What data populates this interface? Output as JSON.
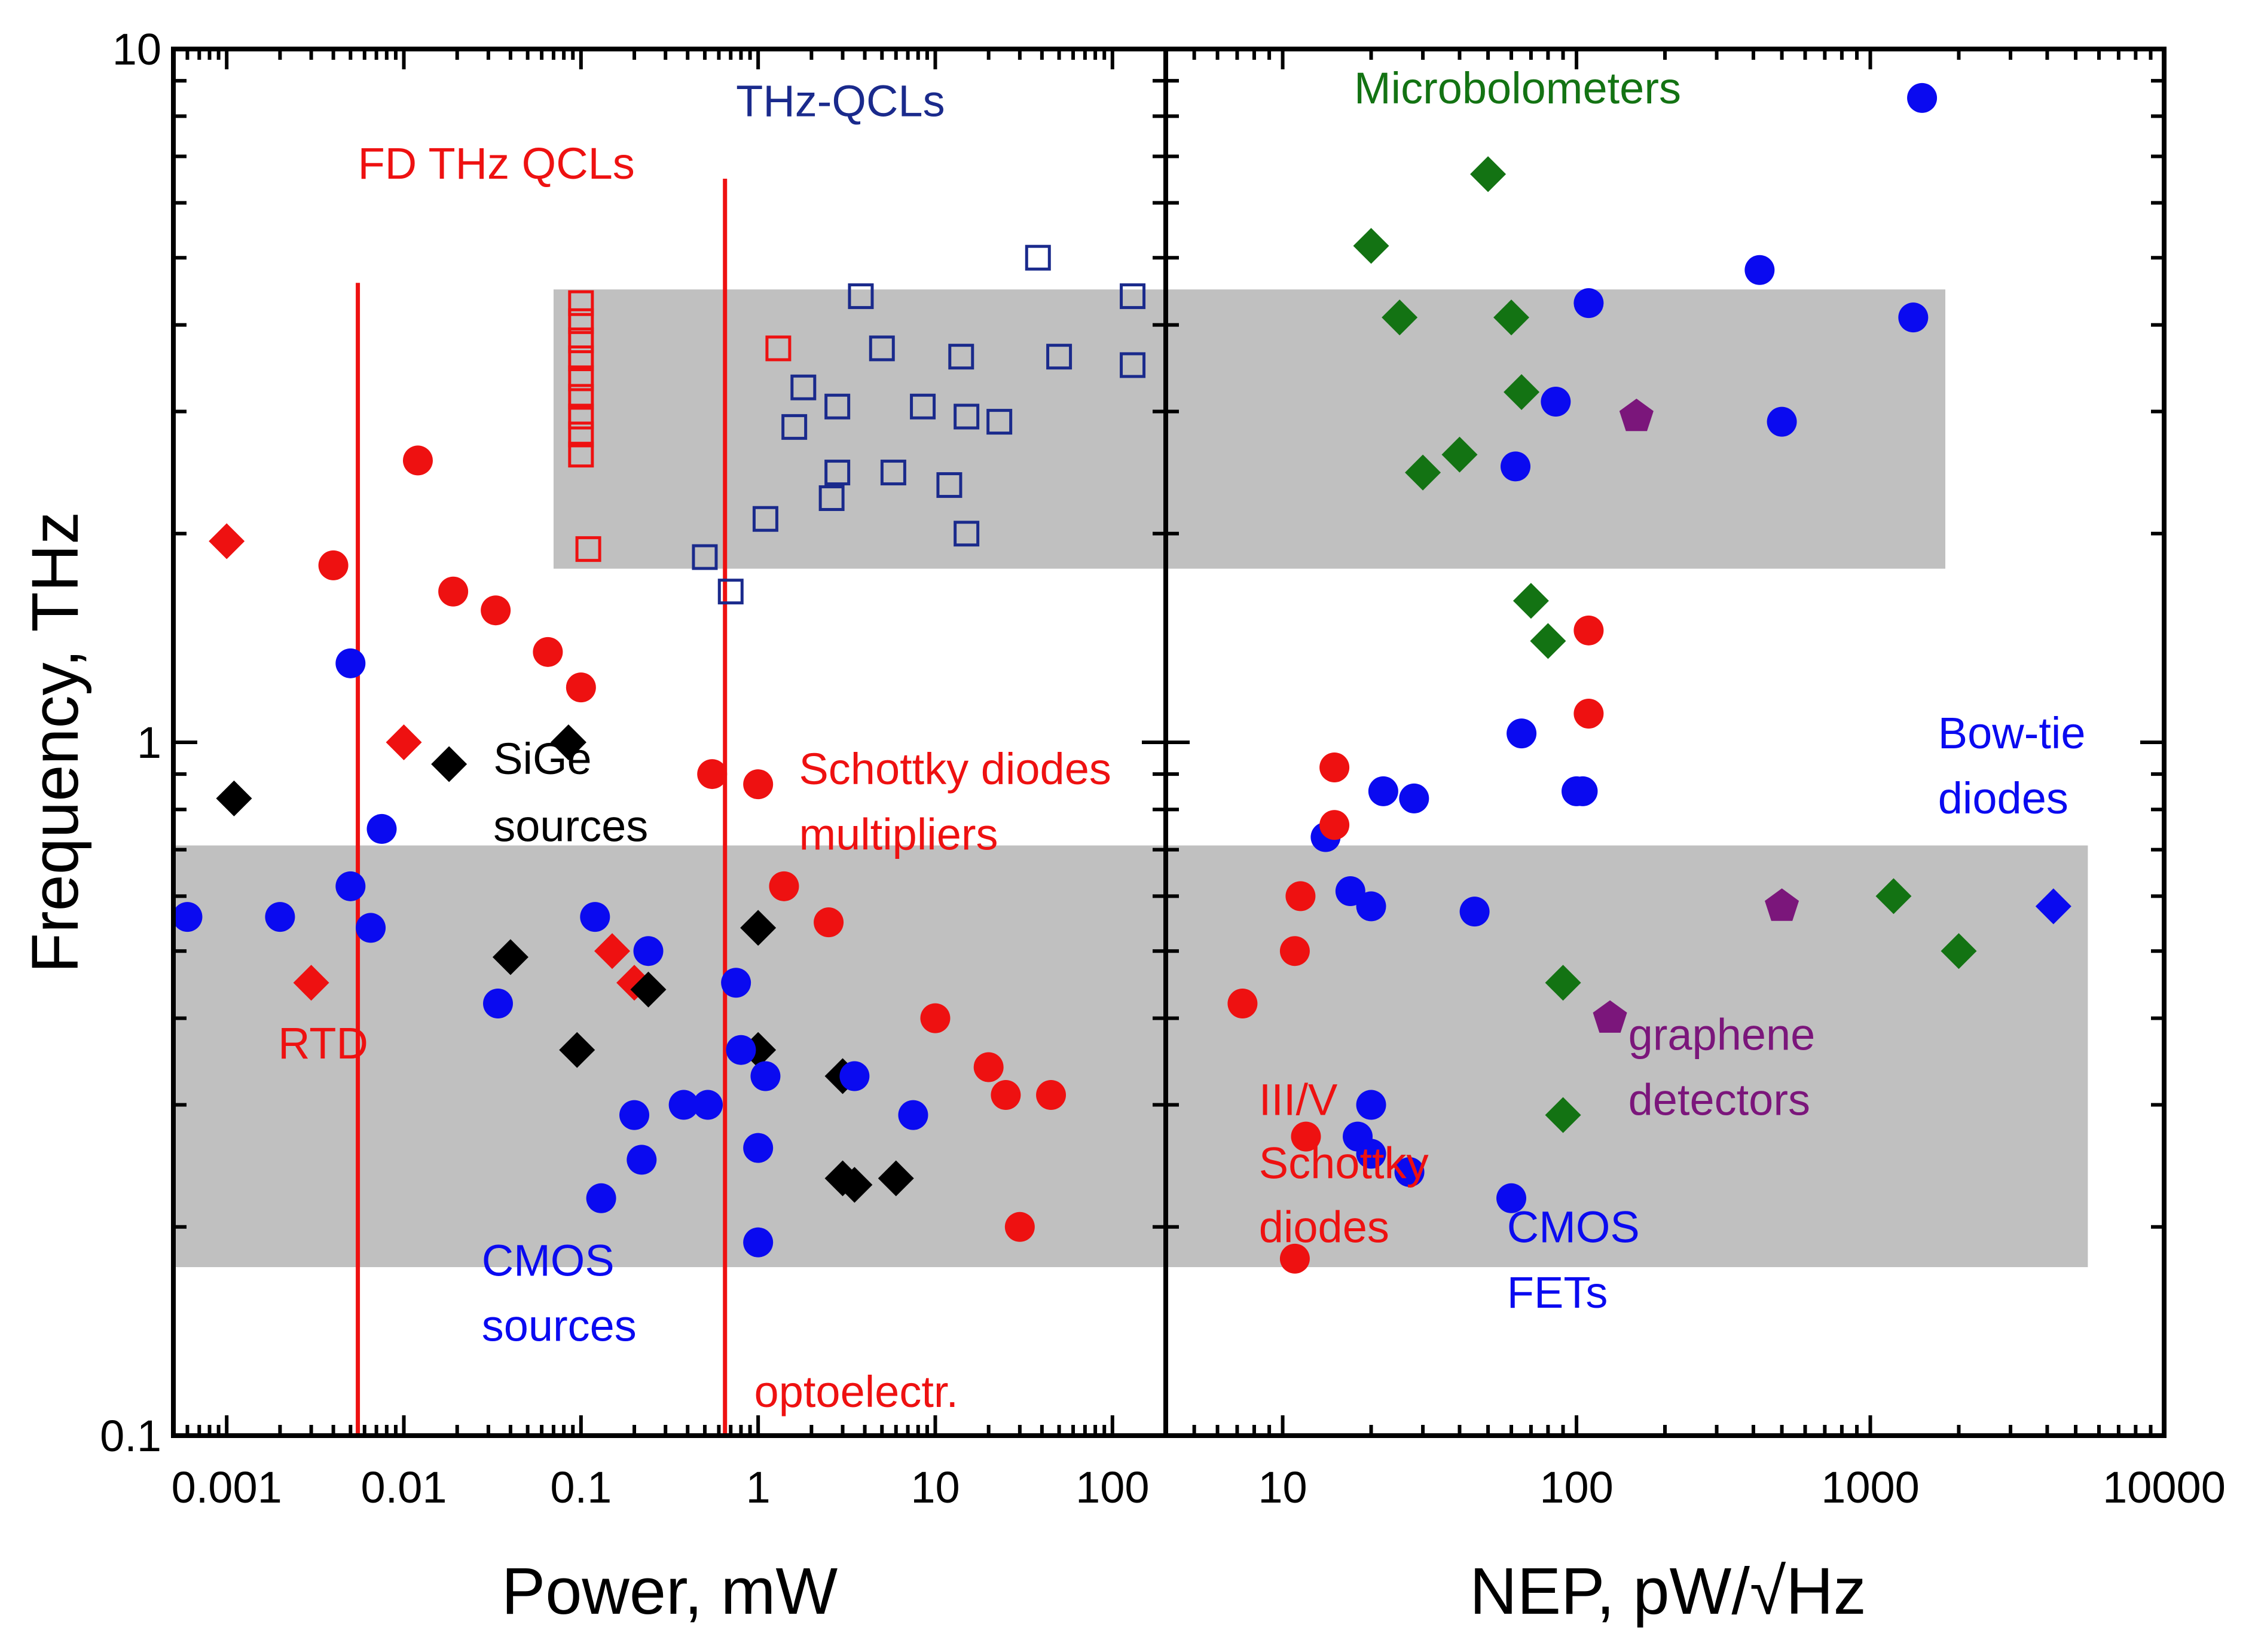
{
  "colors": {
    "red": "#ee1111",
    "blue": "#0a0af0",
    "black": "#000000",
    "green": "#137313",
    "purple": "#7b167b",
    "navy": "#1a2a8c",
    "band": "#c0c0c0"
  },
  "chart_data": {
    "type": "scatter",
    "y_axis": {
      "label": "Frequency, THz",
      "scale": "log",
      "range": [
        0.1,
        10
      ],
      "ticks": [
        {
          "v": 0.1,
          "t": "0.1"
        },
        {
          "v": 1,
          "t": "1"
        },
        {
          "v": 10,
          "t": "10"
        }
      ]
    },
    "left_panel": {
      "xlabel": "Power, mW",
      "x_scale": "log",
      "x_range": [
        0.0005,
        200
      ],
      "x_ticks": [
        {
          "v": 0.001,
          "t": "0.001"
        },
        {
          "v": 0.01,
          "t": "0.01"
        },
        {
          "v": 0.1,
          "t": "0.1"
        },
        {
          "v": 1,
          "t": "1"
        },
        {
          "v": 10,
          "t": "10"
        },
        {
          "v": 100,
          "t": "100"
        }
      ],
      "bands": [
        {
          "x": [
            0.07,
            200
          ],
          "y": [
            1.78,
            4.5
          ]
        },
        {
          "x": [
            0.0005,
            200
          ],
          "y": [
            0.175,
            0.71
          ]
        }
      ],
      "vlines": [
        {
          "x": 0.0055,
          "y": [
            0.1,
            4.6
          ]
        },
        {
          "x": 0.65,
          "y": [
            0.1,
            6.5
          ]
        }
      ],
      "annotations": [
        {
          "text": "THz-QCLs",
          "x": 0.75,
          "y": 8.0,
          "color": "navy"
        },
        {
          "text": "FD THz QCLs",
          "x": 0.0055,
          "y": 6.5,
          "color": "red"
        },
        {
          "text": "SiGe",
          "x": 0.032,
          "y": 0.9,
          "color": "black"
        },
        {
          "text": "sources",
          "x": 0.032,
          "y": 0.72,
          "color": "black"
        },
        {
          "text": "Schottky diodes",
          "x": 1.7,
          "y": 0.87,
          "color": "red"
        },
        {
          "text": "multipliers",
          "x": 1.7,
          "y": 0.7,
          "color": "red"
        },
        {
          "text": "RTD",
          "x": 0.00195,
          "y": 0.35,
          "color": "red"
        },
        {
          "text": "CMOS",
          "x": 0.0275,
          "y": 0.17,
          "color": "blue"
        },
        {
          "text": "sources",
          "x": 0.0275,
          "y": 0.137,
          "color": "blue"
        },
        {
          "text": "optoelectr.",
          "x": 0.95,
          "y": 0.11,
          "color": "red"
        }
      ],
      "series": [
        {
          "name": "Schottky multipliers",
          "marker": "circle",
          "color": "red",
          "points": [
            [
              0.012,
              2.55
            ],
            [
              0.004,
              1.8
            ],
            [
              0.019,
              1.65
            ],
            [
              0.033,
              1.55
            ],
            [
              0.065,
              1.35
            ],
            [
              0.1,
              1.2
            ],
            [
              0.55,
              0.9
            ],
            [
              1.0,
              0.87
            ],
            [
              1.4,
              0.62
            ],
            [
              2.5,
              0.55
            ],
            [
              10.0,
              0.4
            ],
            [
              20.0,
              0.34
            ],
            [
              25.0,
              0.31
            ],
            [
              45.0,
              0.31
            ],
            [
              30.0,
              0.2
            ]
          ]
        },
        {
          "name": "RTD",
          "marker": "diamond",
          "color": "red",
          "points": [
            [
              0.001,
              1.95
            ],
            [
              0.01,
              1.0
            ],
            [
              0.003,
              0.45
            ],
            [
              0.15,
              0.5
            ],
            [
              0.2,
              0.45
            ]
          ]
        },
        {
          "name": "SiGe sources",
          "marker": "diamond",
          "color": "black",
          "points": [
            [
              0.0011,
              0.83
            ],
            [
              0.018,
              0.93
            ],
            [
              0.085,
              1.0
            ],
            [
              0.04,
              0.49
            ],
            [
              0.095,
              0.36
            ],
            [
              0.24,
              0.44
            ],
            [
              1.0,
              0.54
            ],
            [
              1.0,
              0.36
            ],
            [
              3.0,
              0.33
            ],
            [
              3.0,
              0.235
            ],
            [
              3.5,
              0.23
            ],
            [
              6.0,
              0.235
            ]
          ]
        },
        {
          "name": "CMOS sources",
          "marker": "circle",
          "color": "blue",
          "points": [
            [
              0.005,
              1.3
            ],
            [
              0.0075,
              0.75
            ],
            [
              0.005,
              0.62
            ],
            [
              0.0006,
              0.56
            ],
            [
              0.002,
              0.56
            ],
            [
              0.0065,
              0.54
            ],
            [
              0.034,
              0.42
            ],
            [
              0.12,
              0.56
            ],
            [
              0.24,
              0.5
            ],
            [
              0.75,
              0.45
            ],
            [
              0.8,
              0.36
            ],
            [
              1.1,
              0.33
            ],
            [
              3.5,
              0.33
            ],
            [
              0.2,
              0.29
            ],
            [
              0.38,
              0.3
            ],
            [
              0.52,
              0.3
            ],
            [
              1.0,
              0.26
            ],
            [
              7.5,
              0.29
            ],
            [
              0.22,
              0.25
            ],
            [
              0.13,
              0.22
            ],
            [
              1.0,
              0.19
            ]
          ]
        },
        {
          "name": "THz-QCLs",
          "marker": "square-open",
          "color": "navy",
          "points": [
            [
              38,
              5.0
            ],
            [
              3.8,
              4.4
            ],
            [
              130,
              4.4
            ],
            [
              5,
              3.7
            ],
            [
              14,
              3.6
            ],
            [
              50,
              3.6
            ],
            [
              130,
              3.5
            ],
            [
              1.8,
              3.25
            ],
            [
              2.8,
              3.05
            ],
            [
              8.5,
              3.05
            ],
            [
              15,
              2.95
            ],
            [
              23,
              2.9
            ],
            [
              1.6,
              2.85
            ],
            [
              2.8,
              2.45
            ],
            [
              5.8,
              2.45
            ],
            [
              12,
              2.35
            ],
            [
              2.6,
              2.25
            ],
            [
              1.1,
              2.1
            ],
            [
              15,
              2.0
            ],
            [
              0.5,
              1.85
            ],
            [
              0.7,
              1.65
            ]
          ]
        },
        {
          "name": "FD THz QCLs",
          "marker": "square-open",
          "color": "red",
          "points": [
            [
              0.1,
              4.3
            ],
            [
              0.1,
              4.05
            ],
            [
              0.1,
              3.8
            ],
            [
              0.1,
              3.58
            ],
            [
              0.1,
              3.35
            ],
            [
              0.1,
              3.15
            ],
            [
              0.1,
              2.95
            ],
            [
              0.1,
              2.78
            ],
            [
              0.1,
              2.6
            ],
            [
              1.3,
              3.7
            ],
            [
              0.11,
              1.9
            ]
          ]
        }
      ]
    },
    "right_panel": {
      "xlabel": "NEP, pW/√Hz",
      "x_scale": "log",
      "x_range": [
        4,
        10000
      ],
      "x_ticks": [
        {
          "v": 10,
          "t": "10"
        },
        {
          "v": 100,
          "t": "100"
        },
        {
          "v": 1000,
          "t": "1000"
        },
        {
          "v": 10000,
          "t": "10000"
        }
      ],
      "bands": [
        {
          "x": [
            4,
            1800
          ],
          "y": [
            1.78,
            4.5
          ]
        },
        {
          "x": [
            4,
            5500
          ],
          "y": [
            0.175,
            0.71
          ]
        }
      ],
      "annotations": [
        {
          "text": "Microbolometers",
          "x": 17.5,
          "y": 8.35,
          "color": "green"
        },
        {
          "text": "Bow-tie",
          "x": 1700,
          "y": 0.98,
          "color": "blue"
        },
        {
          "text": "diodes",
          "x": 1700,
          "y": 0.79,
          "color": "blue"
        },
        {
          "text": "graphene",
          "x": 150,
          "y": 0.36,
          "color": "purple"
        },
        {
          "text": "detectors",
          "x": 150,
          "y": 0.29,
          "color": "purple"
        },
        {
          "text": "III/V",
          "x": 8.3,
          "y": 0.29,
          "color": "red"
        },
        {
          "text": "Schottky",
          "x": 8.3,
          "y": 0.235,
          "color": "red"
        },
        {
          "text": "diodes",
          "x": 8.3,
          "y": 0.19,
          "color": "red"
        },
        {
          "text": "CMOS",
          "x": 58,
          "y": 0.19,
          "color": "blue"
        },
        {
          "text": "FETs",
          "x": 58,
          "y": 0.153,
          "color": "blue"
        }
      ],
      "series": [
        {
          "name": "Microbolometers",
          "marker": "diamond",
          "color": "green",
          "points": [
            [
              50,
              6.6
            ],
            [
              20,
              5.2
            ],
            [
              25,
              4.1
            ],
            [
              60,
              4.1
            ],
            [
              65,
              3.2
            ],
            [
              40,
              2.6
            ],
            [
              30,
              2.45
            ],
            [
              70,
              1.6
            ],
            [
              80,
              1.4
            ],
            [
              90,
              0.45
            ],
            [
              90,
              0.29
            ],
            [
              1200,
              0.6
            ],
            [
              2000,
              0.5
            ]
          ]
        },
        {
          "name": "Bow-tie diodes",
          "marker": "circle",
          "color": "blue",
          "points": [
            [
              1500,
              8.5
            ],
            [
              420,
              4.8
            ],
            [
              110,
              4.3
            ],
            [
              1400,
              4.1
            ],
            [
              85,
              3.1
            ],
            [
              500,
              2.9
            ],
            [
              62,
              2.5
            ],
            [
              65,
              1.03
            ],
            [
              22,
              0.85
            ],
            [
              28,
              0.83
            ],
            [
              100,
              0.85
            ],
            [
              105,
              0.85
            ],
            [
              14,
              0.73
            ],
            [
              17,
              0.61
            ],
            [
              20,
              0.58
            ],
            [
              45,
              0.57
            ],
            [
              20,
              0.3
            ],
            [
              18,
              0.27
            ],
            [
              20,
              0.255
            ],
            [
              27,
              0.24
            ],
            [
              60,
              0.22
            ]
          ]
        },
        {
          "name": "Bow-tie diamond",
          "marker": "diamond",
          "color": "blue",
          "points": [
            [
              4200,
              0.58
            ]
          ]
        },
        {
          "name": "graphene detectors",
          "marker": "pentagon",
          "color": "purple",
          "points": [
            [
              160,
              2.95
            ],
            [
              500,
              0.58
            ],
            [
              130,
              0.4
            ]
          ]
        },
        {
          "name": "III/V Schottky diodes",
          "marker": "circle",
          "color": "red",
          "points": [
            [
              110,
              1.45
            ],
            [
              110,
              1.1
            ],
            [
              15,
              0.92
            ],
            [
              15,
              0.76
            ],
            [
              11.5,
              0.6
            ],
            [
              11,
              0.5
            ],
            [
              7.3,
              0.42
            ],
            [
              12,
              0.27
            ],
            [
              11,
              0.18
            ]
          ]
        }
      ]
    }
  }
}
